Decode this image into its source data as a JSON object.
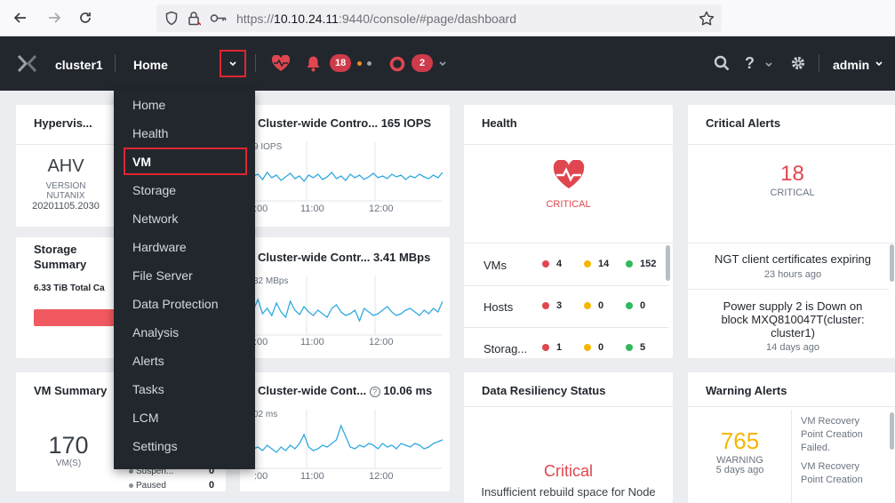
{
  "browser": {
    "url_prefix": "https://",
    "url_host": "10.10.24.11",
    "url_path": ":9440/console/#page/dashboard"
  },
  "header": {
    "cluster_name": "cluster1",
    "current_page": "Home",
    "alerts_count": "18",
    "tasks_count": "2",
    "user": "admin"
  },
  "menu": {
    "items": [
      "Home",
      "Health",
      "VM",
      "Storage",
      "Network",
      "Hardware",
      "File Server",
      "Data Protection",
      "Analysis",
      "Alerts",
      "Tasks",
      "LCM",
      "Settings"
    ],
    "active": "VM"
  },
  "hypervisor": {
    "title": "Hypervis...",
    "name": "AHV",
    "version_label": "VERSION",
    "vendor": "NUTANIX",
    "version": "20201105.2030"
  },
  "storage_summary": {
    "title_line1": "Storage",
    "title_line2": "Summary",
    "capacity_text": "6.33 TiB",
    "capacity_suffix": "Total Ca"
  },
  "vm_summary": {
    "title": "VM Summary",
    "count": "170",
    "count_label": "VM(S)",
    "rows": [
      {
        "label": "Suspen...",
        "value": "0"
      },
      {
        "label": "Paused",
        "value": "0"
      }
    ]
  },
  "iops_chart": {
    "title": "Cluster-wide Contro...",
    "value": "165 IOPS",
    "max_label": "9 IOPS",
    "ticks": [
      ":00",
      "11:00",
      "12:00"
    ]
  },
  "bw_chart": {
    "title": "Cluster-wide Contr...",
    "value": "3.41 MBps",
    "max_label": "32 MBps",
    "ticks": [
      ":00",
      "11:00",
      "12:00"
    ]
  },
  "latency_chart": {
    "title": "Cluster-wide Cont...",
    "value": "10.06 ms",
    "max_label": "02 ms",
    "ticks": [
      ":00",
      "11:00",
      "12:00"
    ]
  },
  "health": {
    "title": "Health",
    "status": "CRITICAL",
    "rows": [
      {
        "label": "VMs",
        "critical": "4",
        "warning": "14",
        "good": "152"
      },
      {
        "label": "Hosts",
        "critical": "3",
        "warning": "0",
        "good": "0"
      },
      {
        "label": "Storag...",
        "critical": "1",
        "warning": "0",
        "good": "5"
      }
    ]
  },
  "critical_alerts": {
    "title": "Critical Alerts",
    "count": "18",
    "label": "CRITICAL",
    "items": [
      {
        "text": "NGT client certificates expiring",
        "time": "23 hours ago"
      },
      {
        "text": "Power supply 2 is Down on block MXQ810047T(cluster: cluster1)",
        "time": "14 days ago"
      }
    ]
  },
  "data_resiliency": {
    "title": "Data Resiliency Status",
    "status": "Critical",
    "message": "Insufficient rebuild space for Node"
  },
  "warning_alerts": {
    "title": "Warning Alerts",
    "count": "765",
    "label": "WARNING",
    "time": "5 days ago",
    "items": [
      "VM Recovery Point Creation Failed.",
      "VM Recovery Point Creation"
    ]
  },
  "colors": {
    "critical": "#e0464f",
    "warning": "#f5b700",
    "good": "#2fba5b",
    "chart_line": "#30a9e0",
    "header_bg": "#22272e"
  }
}
